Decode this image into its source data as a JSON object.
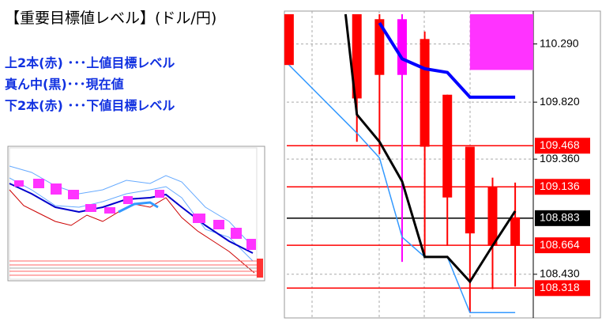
{
  "header": {
    "title": "【重要目標値レベル】(ドル/円)",
    "lines": [
      "上2本(赤) ･･･上値目標レベル",
      "真ん中(黒)･･･現在値",
      "下2本(赤) ･･･下値目標レベル"
    ]
  },
  "chart_data": {
    "type": "candlestick",
    "ylim": [
      108.09,
      110.53
    ],
    "xlim": [
      -0.1,
      10.8
    ],
    "yticks": [
      {
        "value": 110.29,
        "label": "110.290"
      },
      {
        "value": 109.82,
        "label": "109.820"
      },
      {
        "value": 109.36,
        "label": "109.360"
      },
      {
        "value": 108.43,
        "label": "108.430"
      }
    ],
    "grid": true,
    "levels": [
      {
        "value": 109.468,
        "label": "109.468",
        "color": "#ff0000"
      },
      {
        "value": 109.136,
        "label": "109.136",
        "color": "#ff0000"
      },
      {
        "value": 108.883,
        "label": "108.883",
        "color": "#000000"
      },
      {
        "value": 108.664,
        "label": "108.664",
        "color": "#ff0000"
      },
      {
        "value": 108.318,
        "label": "108.318",
        "color": "#ff0000"
      }
    ],
    "candles": {
      "x": [
        0,
        3,
        4,
        5,
        6,
        7,
        8,
        9,
        10
      ],
      "open": [
        110.53,
        110.53,
        110.49,
        110.49,
        110.33,
        109.88,
        109.46,
        109.14,
        108.89
      ],
      "high": [
        110.53,
        110.53,
        110.53,
        110.53,
        110.39,
        109.88,
        109.46,
        109.21,
        109.17
      ],
      "low": [
        110.12,
        109.5,
        109.4,
        108.53,
        108.57,
        108.66,
        108.12,
        108.31,
        108.33
      ],
      "close": [
        110.12,
        109.85,
        110.04,
        110.04,
        109.46,
        109.05,
        108.76,
        108.66,
        108.66
      ],
      "colors": [
        "#ff0000",
        "#ff0000",
        "#ff0000",
        "#ff00ff",
        "#ff0000",
        "#ff0000",
        "#ff0000",
        "#ff0000",
        "#ff0000"
      ]
    },
    "series": [
      {
        "color": "#3399ff",
        "width": 1.5,
        "x": [
          0,
          3,
          4,
          5,
          6,
          7,
          8,
          9,
          10
        ],
        "values": [
          110.12,
          109.57,
          109.37,
          108.73,
          108.57,
          108.57,
          108.12,
          108.12,
          108.12
        ]
      },
      {
        "color": "#0000ff",
        "width": 4,
        "x": [
          4,
          5,
          6,
          7,
          8,
          9,
          10
        ],
        "values": [
          110.46,
          110.17,
          110.09,
          110.06,
          109.86,
          109.86,
          109.86
        ]
      },
      {
        "color": "#000000",
        "width": 3,
        "x": [
          2.5,
          3,
          4,
          5,
          6,
          7,
          8,
          9,
          10
        ],
        "values": [
          110.53,
          109.72,
          109.5,
          109.18,
          108.57,
          108.57,
          108.37,
          108.66,
          108.94
        ]
      }
    ],
    "zone": {
      "x": [
        8,
        10.8
      ],
      "values": [
        110.53,
        110.08
      ],
      "color": "#ff33ff"
    }
  }
}
